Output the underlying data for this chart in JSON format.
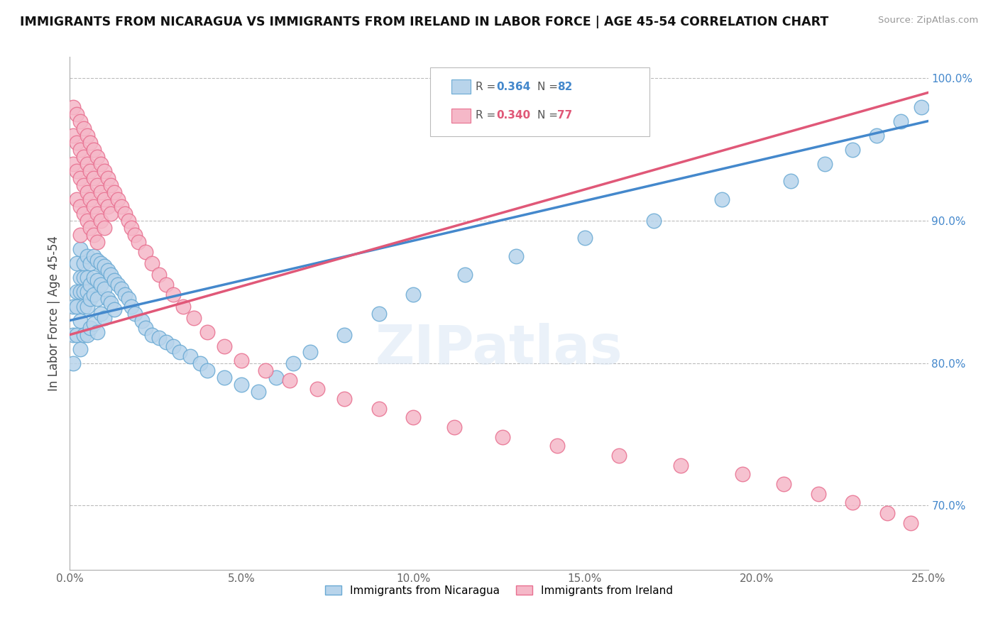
{
  "title": "IMMIGRANTS FROM NICARAGUA VS IMMIGRANTS FROM IRELAND IN LABOR FORCE | AGE 45-54 CORRELATION CHART",
  "source": "Source: ZipAtlas.com",
  "ylabel": "In Labor Force | Age 45-54",
  "xlim": [
    0.0,
    0.25
  ],
  "ylim": [
    0.655,
    1.015
  ],
  "xticks": [
    0.0,
    0.05,
    0.1,
    0.15,
    0.2,
    0.25
  ],
  "xticklabels": [
    "0.0%",
    "5.0%",
    "10.0%",
    "15.0%",
    "20.0%",
    "25.0%"
  ],
  "yticks": [
    0.7,
    0.8,
    0.9,
    1.0
  ],
  "yticklabels": [
    "70.0%",
    "80.0%",
    "90.0%",
    "100.0%"
  ],
  "nicaragua_R": 0.364,
  "nicaragua_N": 82,
  "ireland_R": 0.34,
  "ireland_N": 77,
  "blue_color": "#b8d4eb",
  "blue_edge_color": "#6aaad4",
  "blue_line_color": "#4488cc",
  "pink_color": "#f5b8c8",
  "pink_edge_color": "#e87090",
  "pink_line_color": "#e05878",
  "legend_label_nicaragua": "Immigrants from Nicaragua",
  "legend_label_ireland": "Immigrants from Ireland",
  "nicaragua_x": [
    0.001,
    0.001,
    0.001,
    0.002,
    0.002,
    0.002,
    0.002,
    0.003,
    0.003,
    0.003,
    0.003,
    0.003,
    0.004,
    0.004,
    0.004,
    0.004,
    0.004,
    0.005,
    0.005,
    0.005,
    0.005,
    0.005,
    0.006,
    0.006,
    0.006,
    0.006,
    0.007,
    0.007,
    0.007,
    0.007,
    0.008,
    0.008,
    0.008,
    0.008,
    0.009,
    0.009,
    0.009,
    0.01,
    0.01,
    0.01,
    0.011,
    0.011,
    0.012,
    0.012,
    0.013,
    0.013,
    0.014,
    0.015,
    0.016,
    0.017,
    0.018,
    0.019,
    0.021,
    0.022,
    0.024,
    0.026,
    0.028,
    0.03,
    0.032,
    0.035,
    0.038,
    0.04,
    0.045,
    0.05,
    0.055,
    0.06,
    0.065,
    0.07,
    0.08,
    0.09,
    0.1,
    0.115,
    0.13,
    0.15,
    0.17,
    0.19,
    0.21,
    0.22,
    0.228,
    0.235,
    0.242,
    0.248
  ],
  "nicaragua_y": [
    0.84,
    0.82,
    0.8,
    0.87,
    0.85,
    0.84,
    0.82,
    0.88,
    0.86,
    0.85,
    0.83,
    0.81,
    0.87,
    0.86,
    0.85,
    0.84,
    0.82,
    0.875,
    0.86,
    0.85,
    0.84,
    0.82,
    0.87,
    0.855,
    0.845,
    0.825,
    0.875,
    0.86,
    0.848,
    0.828,
    0.872,
    0.858,
    0.845,
    0.822,
    0.87,
    0.855,
    0.835,
    0.868,
    0.852,
    0.832,
    0.865,
    0.845,
    0.862,
    0.842,
    0.858,
    0.838,
    0.855,
    0.852,
    0.848,
    0.845,
    0.84,
    0.835,
    0.83,
    0.825,
    0.82,
    0.818,
    0.815,
    0.812,
    0.808,
    0.805,
    0.8,
    0.795,
    0.79,
    0.785,
    0.78,
    0.79,
    0.8,
    0.808,
    0.82,
    0.835,
    0.848,
    0.862,
    0.875,
    0.888,
    0.9,
    0.915,
    0.928,
    0.94,
    0.95,
    0.96,
    0.97,
    0.98
  ],
  "ireland_x": [
    0.001,
    0.001,
    0.001,
    0.002,
    0.002,
    0.002,
    0.002,
    0.003,
    0.003,
    0.003,
    0.003,
    0.003,
    0.004,
    0.004,
    0.004,
    0.004,
    0.005,
    0.005,
    0.005,
    0.005,
    0.006,
    0.006,
    0.006,
    0.006,
    0.007,
    0.007,
    0.007,
    0.007,
    0.008,
    0.008,
    0.008,
    0.008,
    0.009,
    0.009,
    0.009,
    0.01,
    0.01,
    0.01,
    0.011,
    0.011,
    0.012,
    0.012,
    0.013,
    0.014,
    0.015,
    0.016,
    0.017,
    0.018,
    0.019,
    0.02,
    0.022,
    0.024,
    0.026,
    0.028,
    0.03,
    0.033,
    0.036,
    0.04,
    0.045,
    0.05,
    0.057,
    0.064,
    0.072,
    0.08,
    0.09,
    0.1,
    0.112,
    0.126,
    0.142,
    0.16,
    0.178,
    0.196,
    0.208,
    0.218,
    0.228,
    0.238,
    0.245
  ],
  "ireland_y": [
    0.98,
    0.96,
    0.94,
    0.975,
    0.955,
    0.935,
    0.915,
    0.97,
    0.95,
    0.93,
    0.91,
    0.89,
    0.965,
    0.945,
    0.925,
    0.905,
    0.96,
    0.94,
    0.92,
    0.9,
    0.955,
    0.935,
    0.915,
    0.895,
    0.95,
    0.93,
    0.91,
    0.89,
    0.945,
    0.925,
    0.905,
    0.885,
    0.94,
    0.92,
    0.9,
    0.935,
    0.915,
    0.895,
    0.93,
    0.91,
    0.925,
    0.905,
    0.92,
    0.915,
    0.91,
    0.905,
    0.9,
    0.895,
    0.89,
    0.885,
    0.878,
    0.87,
    0.862,
    0.855,
    0.848,
    0.84,
    0.832,
    0.822,
    0.812,
    0.802,
    0.795,
    0.788,
    0.782,
    0.775,
    0.768,
    0.762,
    0.755,
    0.748,
    0.742,
    0.735,
    0.728,
    0.722,
    0.715,
    0.708,
    0.702,
    0.695,
    0.688
  ]
}
